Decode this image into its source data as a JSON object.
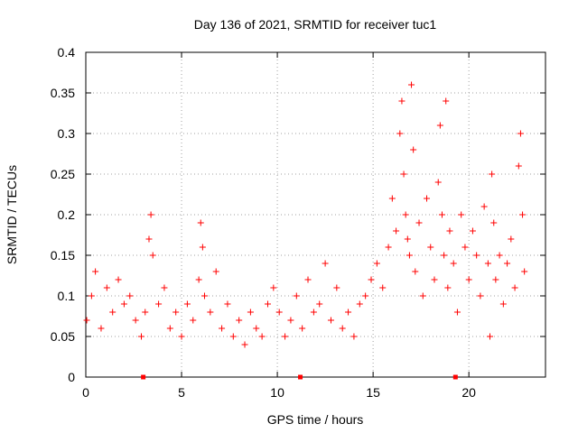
{
  "chart_data": {
    "type": "scatter",
    "title": "Day 136 of 2021, SRMTID for receiver tuc1",
    "xlabel": "GPS time / hours",
    "ylabel": "SRMTID / TECUs",
    "xlim": [
      0,
      24
    ],
    "ylim": [
      0,
      0.4
    ],
    "xticks": [
      0,
      5,
      10,
      15,
      20
    ],
    "xtick_labels": [
      "0",
      "5",
      "10",
      "15",
      "20"
    ],
    "yticks": [
      0,
      0.05,
      0.1,
      0.15,
      0.2,
      0.25,
      0.3,
      0.35,
      0.4
    ],
    "ytick_labels": [
      "0",
      "0.05",
      "0.1",
      "0.15",
      "0.2",
      "0.25",
      "0.3",
      "0.35",
      "0.4"
    ],
    "grid": true,
    "marker": "plus",
    "series": [
      {
        "name": "SRMTID",
        "color": "#ff0000",
        "x": [
          0.05,
          0.3,
          0.5,
          0.8,
          1.1,
          1.4,
          1.7,
          2.0,
          2.3,
          2.6,
          2.9,
          3.1,
          3.3,
          3.4,
          3.5,
          3.8,
          4.1,
          4.4,
          4.7,
          5.0,
          5.3,
          5.6,
          5.9,
          6.0,
          6.1,
          6.2,
          6.5,
          6.8,
          7.1,
          7.4,
          7.7,
          8.0,
          8.3,
          8.6,
          8.9,
          9.2,
          9.5,
          9.8,
          10.1,
          10.4,
          10.7,
          11.0,
          11.3,
          11.6,
          11.9,
          12.2,
          12.5,
          12.8,
          13.1,
          13.4,
          13.7,
          14.0,
          14.3,
          14.6,
          14.9,
          15.2,
          15.5,
          15.8,
          16.0,
          16.2,
          16.4,
          16.5,
          16.6,
          16.7,
          16.8,
          16.9,
          17.0,
          17.1,
          17.2,
          17.4,
          17.6,
          17.8,
          18.0,
          18.2,
          18.4,
          18.5,
          18.6,
          18.7,
          18.8,
          18.9,
          19.0,
          19.2,
          19.4,
          19.6,
          19.8,
          20.0,
          20.2,
          20.4,
          20.6,
          20.8,
          21.0,
          21.1,
          21.2,
          21.3,
          21.4,
          21.6,
          21.8,
          22.0,
          22.2,
          22.4,
          22.6,
          22.7,
          22.8,
          22.9
        ],
        "y": [
          0.07,
          0.1,
          0.13,
          0.06,
          0.11,
          0.08,
          0.12,
          0.09,
          0.1,
          0.07,
          0.05,
          0.08,
          0.17,
          0.2,
          0.15,
          0.09,
          0.11,
          0.06,
          0.08,
          0.05,
          0.09,
          0.07,
          0.12,
          0.19,
          0.16,
          0.1,
          0.08,
          0.13,
          0.06,
          0.09,
          0.05,
          0.07,
          0.04,
          0.08,
          0.06,
          0.05,
          0.09,
          0.11,
          0.08,
          0.05,
          0.07,
          0.1,
          0.06,
          0.12,
          0.08,
          0.09,
          0.14,
          0.07,
          0.11,
          0.06,
          0.08,
          0.05,
          0.09,
          0.1,
          0.12,
          0.14,
          0.11,
          0.16,
          0.22,
          0.18,
          0.3,
          0.34,
          0.25,
          0.2,
          0.17,
          0.15,
          0.36,
          0.28,
          0.13,
          0.19,
          0.1,
          0.22,
          0.16,
          0.12,
          0.24,
          0.31,
          0.2,
          0.15,
          0.34,
          0.11,
          0.18,
          0.14,
          0.08,
          0.2,
          0.16,
          0.12,
          0.18,
          0.15,
          0.1,
          0.21,
          0.14,
          0.05,
          0.25,
          0.19,
          0.12,
          0.15,
          0.09,
          0.14,
          0.17,
          0.11,
          0.26,
          0.3,
          0.2,
          0.13
        ]
      }
    ],
    "annotations": [
      {
        "type": "marker-on-axis",
        "x": 3.0,
        "y": 0
      },
      {
        "type": "marker-on-axis",
        "x": 11.2,
        "y": 0
      },
      {
        "type": "marker-on-axis",
        "x": 19.3,
        "y": 0
      }
    ]
  }
}
